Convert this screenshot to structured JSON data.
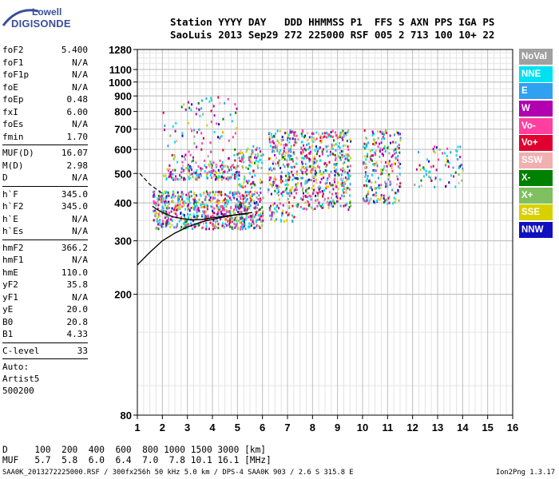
{
  "logo": {
    "top_text": "Lowell",
    "main_text": "DIGISONDE"
  },
  "header": {
    "line1": "Station YYYY DAY   DDD HHMMSS P1  FFS S AXN PPS IGA PS",
    "line2": "SaoLuis 2013 Sep29 272 225000 RSF 005 2 713 100 10+ 22"
  },
  "params_group1": [
    {
      "label": "foF2",
      "value": "5.400"
    },
    {
      "label": "foF1",
      "value": "N/A"
    },
    {
      "label": "foF1p",
      "value": "N/A"
    },
    {
      "label": "foE",
      "value": "N/A"
    },
    {
      "label": "foEp",
      "value": "0.48"
    },
    {
      "label": "fxI",
      "value": "6.00"
    },
    {
      "label": "foEs",
      "value": "N/A"
    },
    {
      "label": "fmin",
      "value": "1.70"
    }
  ],
  "params_group2": [
    {
      "label": "MUF(D)",
      "value": "16.07"
    },
    {
      "label": "M(D)",
      "value": "2.98"
    },
    {
      "label": "D",
      "value": "N/A"
    }
  ],
  "params_group3": [
    {
      "label": "h`F",
      "value": "345.0"
    },
    {
      "label": "h`F2",
      "value": "345.0"
    },
    {
      "label": "h`E",
      "value": "N/A"
    },
    {
      "label": "h`Es",
      "value": "N/A"
    }
  ],
  "params_group4": [
    {
      "label": "hmF2",
      "value": "366.2"
    },
    {
      "label": "hmF1",
      "value": "N/A"
    },
    {
      "label": "hmE",
      "value": "110.0"
    },
    {
      "label": "yF2",
      "value": "35.8"
    },
    {
      "label": "yF1",
      "value": "N/A"
    },
    {
      "label": "yE",
      "value": "20.0"
    },
    {
      "label": "B0",
      "value": "20.8"
    },
    {
      "label": "B1",
      "value": "4.33"
    }
  ],
  "params_group5": [
    {
      "label": "C-level",
      "value": "33"
    }
  ],
  "auto_lines": [
    "Auto:",
    "Artist5",
    "500200"
  ],
  "legend": [
    {
      "label": "NoVal",
      "color": "#a0a0a0"
    },
    {
      "label": "NNE",
      "color": "#00e0f0"
    },
    {
      "label": "E",
      "color": "#30a0f0"
    },
    {
      "label": "W",
      "color": "#b000b0"
    },
    {
      "label": "Vo-",
      "color": "#ff40a0"
    },
    {
      "label": "Vo+",
      "color": "#e00030"
    },
    {
      "label": "SSW",
      "color": "#f0b0b0"
    },
    {
      "label": "X-",
      "color": "#008000"
    },
    {
      "label": "X+",
      "color": "#80c060"
    },
    {
      "label": "SSE",
      "color": "#d8d000"
    },
    {
      "label": "NNW",
      "color": "#1010c0"
    }
  ],
  "bottom": {
    "d_line": "D     100  200  400  600  800 1000 1500 3000 [km]",
    "muf_line": "MUF   5.7  5.8  6.0  6.4  7.0  7.8 10.1 16.1 [MHz]",
    "footer_left": "SAA0K_2013272225000.RSF / 300fx256h 50 kHz 5.0 km / DPS-4 SAA0K 903 / 2.6 S 315.8 E",
    "footer_right": "Ion2Png 1.3.17"
  },
  "chart_data": {
    "type": "scatter",
    "xlim": [
      1,
      16
    ],
    "x_ticks": [
      1,
      2,
      3,
      4,
      5,
      6,
      7,
      8,
      9,
      10,
      11,
      12,
      13,
      14,
      15,
      16
    ],
    "y_scale": "log",
    "ylim": [
      80,
      1280
    ],
    "y_ticks": [
      80,
      200,
      300,
      400,
      500,
      600,
      700,
      800,
      900,
      1000,
      1100,
      1280
    ],
    "grid": true,
    "legend_position": "right",
    "xlabel": "",
    "ylabel": "",
    "echo_clusters": [
      {
        "x": [
          1.6,
          6.0
        ],
        "y": [
          330,
          440
        ],
        "density": 1.0
      },
      {
        "x": [
          2.0,
          5.0
        ],
        "y": [
          480,
          540
        ],
        "density": 0.8
      },
      {
        "x": [
          2.0,
          5.0
        ],
        "y": [
          540,
          900
        ],
        "density": 0.12
      },
      {
        "x": [
          5.0,
          6.0
        ],
        "y": [
          450,
          620
        ],
        "density": 0.5
      },
      {
        "x": [
          6.2,
          7.4
        ],
        "y": [
          350,
          700
        ],
        "density": 0.55
      },
      {
        "x": [
          7.5,
          9.5
        ],
        "y": [
          380,
          700
        ],
        "density": 0.6
      },
      {
        "x": [
          10.0,
          11.5
        ],
        "y": [
          400,
          700
        ],
        "density": 0.5
      },
      {
        "x": [
          12.0,
          14.0
        ],
        "y": [
          450,
          620
        ],
        "density": 0.2
      }
    ],
    "profile_curve_x": [
      1.0,
      1.5,
      2.0,
      2.5,
      3.0,
      3.5,
      4.0,
      4.5,
      5.0,
      5.4,
      5.6
    ],
    "profile_curve_y": [
      250,
      275,
      300,
      318,
      333,
      345,
      353,
      360,
      366,
      370,
      372
    ],
    "trace_x": [
      1.6,
      1.8,
      2.0,
      2.4,
      2.8,
      3.2,
      3.6,
      4.0,
      4.5,
      5.0,
      5.4
    ],
    "trace_y": [
      390,
      380,
      372,
      360,
      355,
      352,
      353,
      357,
      362,
      366,
      368
    ],
    "dashed_x": [
      1.1,
      1.5,
      2.0
    ],
    "dashed_y": [
      500,
      460,
      430
    ]
  }
}
